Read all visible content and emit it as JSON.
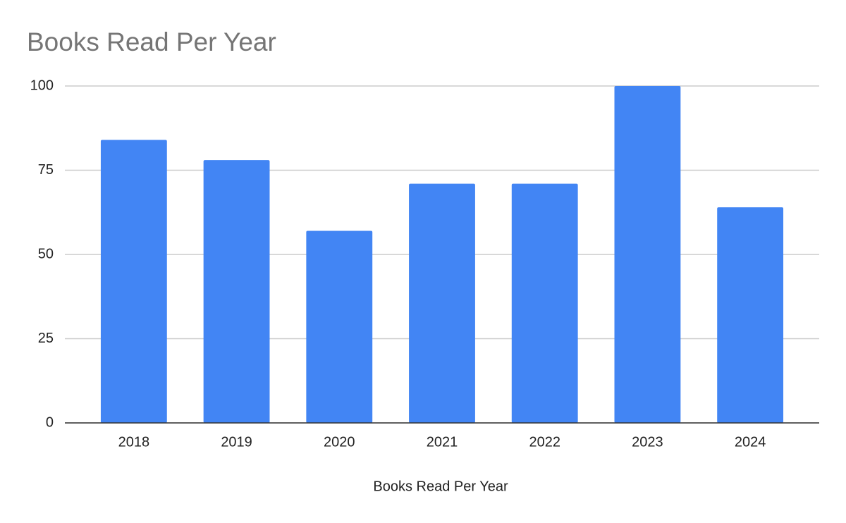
{
  "chart_data": {
    "type": "bar",
    "title": "Books Read Per Year",
    "x_label": "Books Read Per Year",
    "categories": [
      "2018",
      "2019",
      "2020",
      "2021",
      "2022",
      "2023",
      "2024"
    ],
    "values": [
      84,
      78,
      57,
      71,
      71,
      100,
      64
    ],
    "color": "#4285f4",
    "ylim": [
      0,
      100
    ],
    "yticks": [
      0,
      25,
      50,
      75,
      100
    ],
    "grid": true
  }
}
